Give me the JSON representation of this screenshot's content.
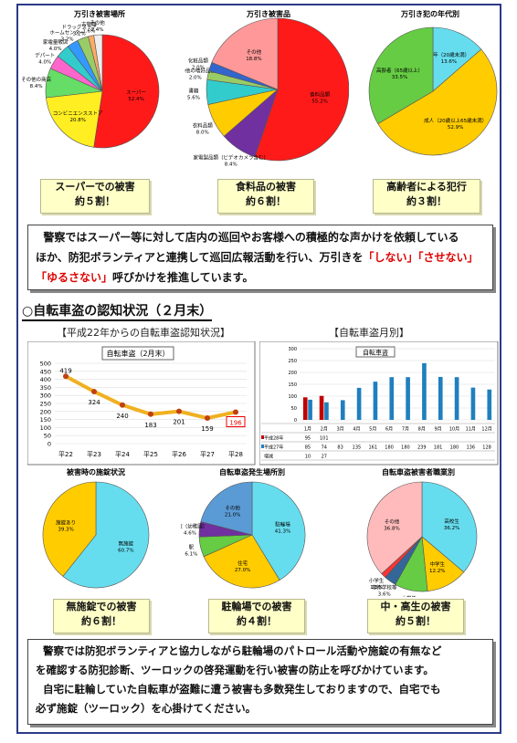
{
  "chart_data": [
    {
      "type": "pie",
      "title": "万引き被害場所",
      "slices": [
        {
          "label": "スーパー",
          "value": 52.4,
          "color": "#ff1a1a"
        },
        {
          "label": "コンビニエンスストア",
          "value": 20.8,
          "color": "#ffee22"
        },
        {
          "label": "その他の商店",
          "value": 8.4,
          "color": "#66dd66"
        },
        {
          "label": "デパート",
          "value": 4.0,
          "color": "#ff66cc"
        },
        {
          "label": "家電量販店",
          "value": 4.0,
          "color": "#33cccc"
        },
        {
          "label": "ホームセンター",
          "value": 3.2,
          "color": "#3399ff"
        },
        {
          "label": "ドラッグストア",
          "value": 3.2,
          "color": "#99cc66"
        },
        {
          "label": "古物商",
          "value": 1.6,
          "color": "#ffaa66"
        },
        {
          "label": "その他",
          "value": 2.4,
          "color": "#eeeeee"
        }
      ]
    },
    {
      "type": "pie",
      "title": "万引き被害品",
      "slices": [
        {
          "label": "食料品類",
          "value": 55.2,
          "color": "#ff1a1a"
        },
        {
          "label": "家電製品類（ビデオカメラ含む）",
          "value": 8.4,
          "color": "#7030a0"
        },
        {
          "label": "衣料品類",
          "value": 8.0,
          "color": "#ffcc00"
        },
        {
          "label": "書籍",
          "value": 5.6,
          "color": "#33cccc"
        },
        {
          "label": "その他の嗜好品類",
          "value": 2.0,
          "color": "#99cc66"
        },
        {
          "label": "化粧品類",
          "value": 2.0,
          "color": "#3366cc"
        },
        {
          "label": "その他",
          "value": 18.8,
          "color": "#ff9999"
        }
      ]
    },
    {
      "type": "pie",
      "title": "万引き犯の年代別",
      "slices": [
        {
          "label": "少年（20歳未満）",
          "value": 13.6,
          "color": "#66ddee"
        },
        {
          "label": "成人（20歳以上65歳未満）",
          "value": 52.9,
          "color": "#ffcc00"
        },
        {
          "label": "高齢者（65歳以上）",
          "value": 33.5,
          "color": "#66cc44"
        }
      ]
    },
    {
      "type": "line",
      "title": "自転車盗（2月末）",
      "categories": [
        "平22",
        "平23",
        "平24",
        "平25",
        "平26",
        "平27",
        "平28"
      ],
      "values": [
        419,
        324,
        240,
        183,
        201,
        159,
        196
      ],
      "ylim": [
        0,
        500
      ],
      "yticks": [
        0,
        50,
        100,
        150,
        200,
        250,
        300,
        350,
        400,
        450,
        500
      ]
    },
    {
      "type": "bar",
      "title": "自転車盗",
      "categories": [
        "1月",
        "2月",
        "3月",
        "4月",
        "5月",
        "6月",
        "7月",
        "8月",
        "9月",
        "10月",
        "11月",
        "12月"
      ],
      "ylim": [
        0,
        300
      ],
      "yticks": [
        0,
        50,
        100,
        150,
        200,
        250,
        300
      ],
      "series": [
        {
          "name": "平成28年",
          "values": [
            95,
            101,
            null,
            null,
            null,
            null,
            null,
            null,
            null,
            null,
            null,
            null
          ],
          "color": "#c00000"
        },
        {
          "name": "平成27年",
          "values": [
            85,
            74,
            83,
            135,
            161,
            180,
            180,
            239,
            181,
            180,
            136,
            128
          ],
          "color": "#1f7fbf"
        }
      ],
      "diff_label": "増減",
      "diff": [
        "10",
        "27",
        "",
        "",
        "",
        "",
        "",
        "",
        "",
        "",
        "",
        ""
      ],
      "table_values": [
        [
          "95",
          "101",
          "",
          "",
          "",
          "",
          "",
          "",
          "",
          "",
          "",
          ""
        ],
        [
          "85",
          "74",
          "83",
          "135",
          "161",
          "180",
          "180",
          "239",
          "181",
          "180",
          "136",
          "128"
        ]
      ]
    },
    {
      "type": "pie",
      "title": "被害時の施錠状況",
      "slices": [
        {
          "label": "無施錠",
          "value": 60.7,
          "color": "#66ddee"
        },
        {
          "label": "施錠あり",
          "value": 39.3,
          "color": "#ffcc00"
        }
      ]
    },
    {
      "type": "pie",
      "title": "自転車盗発生場所別",
      "slices": [
        {
          "label": "駐輪場",
          "value": 41.3,
          "color": "#66ddee"
        },
        {
          "label": "住宅",
          "value": 27.0,
          "color": "#ffcc00"
        },
        {
          "label": "駅",
          "value": 6.1,
          "color": "#66cc44"
        },
        {
          "label": "学校（幼稚園）",
          "value": 4.6,
          "color": "#7030a0"
        },
        {
          "label": "その他",
          "value": 21.0,
          "color": "#5b9bd5"
        }
      ]
    },
    {
      "type": "pie",
      "title": "自転車盗被害者職業別",
      "slices": [
        {
          "label": "高校生",
          "value": 36.2,
          "color": "#66ddee"
        },
        {
          "label": "中学生",
          "value": 12.2,
          "color": "#ffcc00"
        },
        {
          "label": "大学生",
          "value": 9.7,
          "color": "#66cc44"
        },
        {
          "label": "専修学校等",
          "value": 3.6,
          "color": "#336699"
        },
        {
          "label": "小学生",
          "value": 1.5,
          "color": "#ff3333"
        },
        {
          "label": "その他",
          "value": 36.8,
          "color": "#ffbbbb"
        }
      ]
    }
  ],
  "captions": {
    "c1": [
      "スーパーでの被害",
      "約５割！"
    ],
    "c2": [
      "食料品の被害",
      "約６割！"
    ],
    "c3": [
      "高齢者による犯行",
      "約３割！"
    ],
    "c4": [
      "無施錠での被害",
      "約６割！"
    ],
    "c5": [
      "駐輪場での被害",
      "約４割！"
    ],
    "c6": [
      "中・高生の被害",
      "約５割！"
    ]
  },
  "para1": {
    "line1": "警察ではスーパー等に対して店内の巡回やお客様への積極的な声かけを依頼している",
    "line2a": "ほか、防犯ボランティアと連携して巡回広報活動を行い、万引きを",
    "q1": "「しない」",
    "q2": "「させない」",
    "q3": "「ゆるさない」",
    "line3b": "呼びかけを推進しています。"
  },
  "section": {
    "title": "○自転車盗の認知状況（２月末）",
    "left_sub": "【平成22年からの自転車盗認知状況】",
    "right_sub": "【自転車盗月別】"
  },
  "para2": {
    "line1": "警察では防犯ボランティアと協力しながら駐輪場のパトロール活動や施錠の有無など",
    "line2": "を確認する防犯診断、ツーロックの啓発運動を行い被害の防止を呼びかけています。",
    "line3": "自宅に駐輪していた自転車が盗難に遭う被害も多数発生しておりますので、自宅でも",
    "line4": "必ず施錠（ツーロック）を心掛けてください。"
  }
}
